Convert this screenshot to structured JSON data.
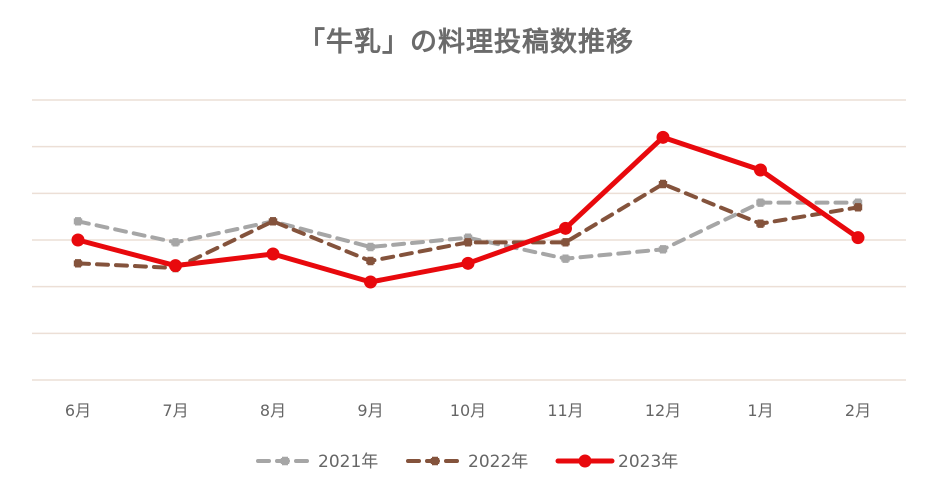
{
  "chart_data": {
    "type": "line",
    "title": "「牛乳」の料理投稿数推移",
    "xlabel": "",
    "ylabel": "",
    "ylim": [
      0,
      6
    ],
    "grid": true,
    "legend_position": "bottom",
    "categories": [
      "6月",
      "7月",
      "8月",
      "9月",
      "10月",
      "11月",
      "12月",
      "1月",
      "2月"
    ],
    "series": [
      {
        "name": "2021年",
        "color": "#a6a6a6",
        "style": "dashed",
        "values": [
          3.4,
          2.95,
          3.4,
          2.85,
          3.05,
          2.6,
          2.8,
          3.8,
          3.8
        ]
      },
      {
        "name": "2022年",
        "color": "#84533c",
        "style": "dashed",
        "values": [
          2.5,
          2.4,
          3.4,
          2.55,
          2.95,
          2.95,
          4.2,
          3.35,
          3.7
        ]
      },
      {
        "name": "2023年",
        "color": "#e8090d",
        "style": "solid",
        "values": [
          3.0,
          2.45,
          2.7,
          2.1,
          2.5,
          3.25,
          5.2,
          4.5,
          3.05
        ]
      }
    ]
  }
}
